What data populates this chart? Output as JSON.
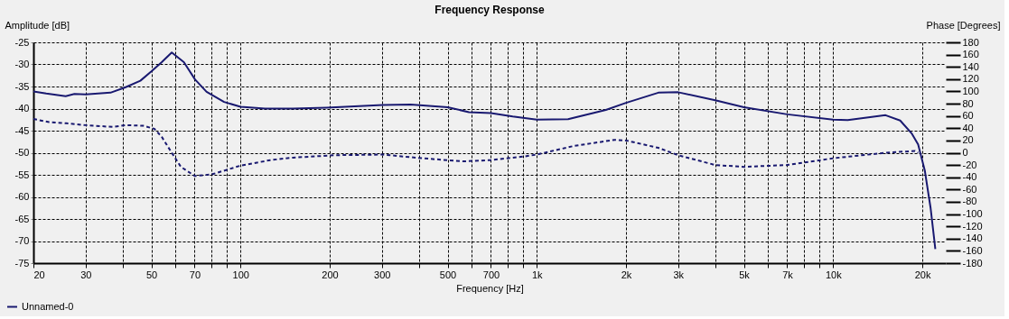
{
  "chart_data": {
    "type": "line",
    "title": "Frequency Response",
    "xlabel": "Frequency [Hz]",
    "ylabel": "Amplitude [dB]",
    "y2label": "Phase [Degrees]",
    "log": "x",
    "grid": true,
    "legend": "bottom left",
    "marker": "none",
    "xlim": [
      20,
      24000
    ],
    "xticks": [
      20,
      30,
      {
        "value": 40,
        "label": null
      },
      50,
      {
        "value": 60,
        "label": null
      },
      70,
      {
        "value": 80,
        "label": null
      },
      {
        "value": 90,
        "label": null
      },
      100,
      200,
      300,
      {
        "value": 400,
        "label": null
      },
      500,
      {
        "value": 600,
        "label": null
      },
      700,
      {
        "value": 800,
        "label": null
      },
      {
        "value": 900,
        "label": null
      },
      {
        "value": 1000,
        "label": "1k"
      },
      {
        "value": 2000,
        "label": "2k"
      },
      {
        "value": 3000,
        "label": "3k"
      },
      {
        "value": 4000,
        "label": null
      },
      {
        "value": 5000,
        "label": "5k"
      },
      {
        "value": 6000,
        "label": null
      },
      {
        "value": 7000,
        "label": "7k"
      },
      {
        "value": 8000,
        "label": null
      },
      {
        "value": 9000,
        "label": null
      },
      {
        "value": 10000,
        "label": "10k"
      },
      {
        "value": 20000,
        "label": "20k"
      }
    ],
    "ylim": [
      -75,
      -25
    ],
    "yticks": [
      -75,
      -70,
      -65,
      -60,
      -55,
      -50,
      -45,
      -40,
      -35,
      -30,
      -25
    ],
    "y2lim": [
      -180,
      180
    ],
    "y2ticks": [
      -180,
      -160,
      -140,
      -120,
      -100,
      -80,
      -60,
      -40,
      -20,
      0,
      20,
      40,
      60,
      80,
      100,
      120,
      140,
      160,
      180
    ],
    "series": [
      {
        "name": "Unnamed-0",
        "color": "#191970",
        "line_style": "solid",
        "x": [
          20,
          22.1,
          25.7,
          27.5,
          30,
          36.4,
          40.8,
          45.9,
          50,
          54.2,
          58.6,
          64.4,
          70.2,
          76.8,
          88,
          100,
          121,
          150,
          195,
          302,
          375,
          500,
          590,
          700,
          829,
          1000,
          1275,
          1710,
          2000,
          2571,
          3000,
          4000,
          5000,
          7000,
          10000,
          11200,
          15030,
          16840,
          18450,
          19360,
          20400,
          21330,
          22130
        ],
        "values": [
          -36.1,
          -36.6,
          -37.2,
          -36.7,
          -36.8,
          -36.4,
          -35.2,
          -33.7,
          -31.6,
          -29.5,
          -27.3,
          -29.5,
          -33.4,
          -36.2,
          -38.5,
          -39.6,
          -40.0,
          -40.0,
          -39.8,
          -39.2,
          -39.1,
          -39.7,
          -40.8,
          -41.0,
          -41.8,
          -42.5,
          -42.4,
          -40.3,
          -38.7,
          -36.4,
          -36.3,
          -38.1,
          -39.7,
          -41.3,
          -42.5,
          -42.6,
          -41.5,
          -42.7,
          -45.7,
          -48.1,
          -54.1,
          -62.5,
          -71.8
        ]
      },
      {
        "color": "#191970",
        "line_style": "dashed",
        "axis": "y2",
        "x": [
          20,
          22.6,
          25.8,
          30,
          37.2,
          40.8,
          46.9,
          51.2,
          54.2,
          58.6,
          62.9,
          70.2,
          80.4,
          100,
          126,
          150,
          209,
          302,
          411,
          564,
          700,
          908,
          1000,
          1330,
          1830,
          2000,
          2571,
          3000,
          4000,
          5000,
          7000,
          10000,
          15030,
          18900,
          19360
        ],
        "values": [
          55,
          50,
          48,
          45,
          42,
          45,
          44,
          39,
          26,
          0,
          -23,
          -38,
          -35,
          -21,
          -12,
          -8,
          -4,
          -3,
          -9,
          -14,
          -12,
          -6,
          -3,
          11,
          21,
          20,
          8,
          -4,
          -20,
          -23,
          -20,
          -9,
          0,
          3,
          0
        ]
      }
    ]
  }
}
